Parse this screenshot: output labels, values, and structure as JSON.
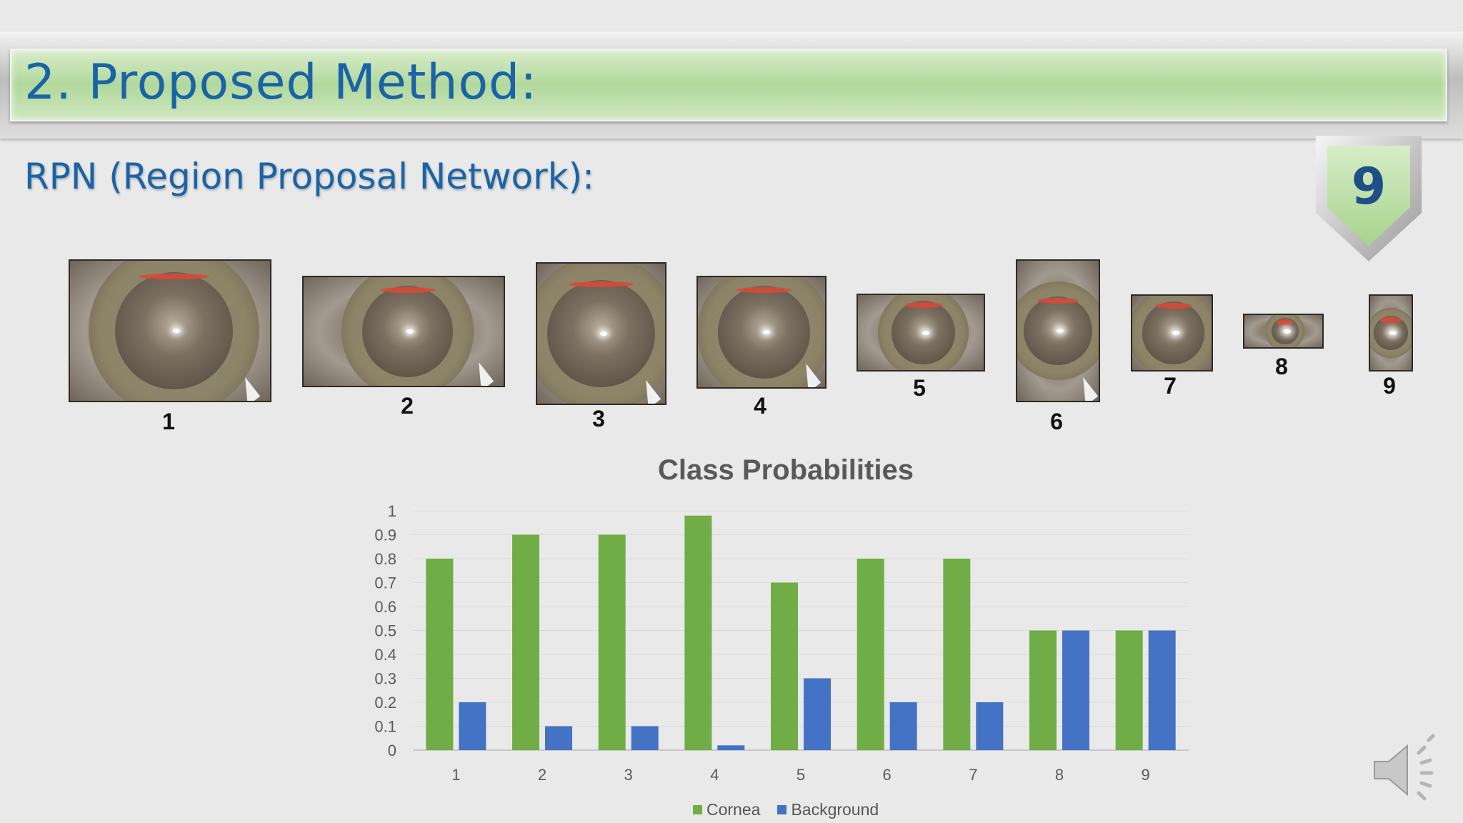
{
  "slide": {
    "title": "2. Proposed Method:",
    "subtitle": "RPN (Region Proposal Network):",
    "slide_number": "9"
  },
  "proposals": [
    {
      "label": "1"
    },
    {
      "label": "2"
    },
    {
      "label": "3"
    },
    {
      "label": "4"
    },
    {
      "label": "5"
    },
    {
      "label": "6"
    },
    {
      "label": "7"
    },
    {
      "label": "8"
    },
    {
      "label": "9"
    }
  ],
  "icons": {
    "speaker": "speaker-volume-icon"
  },
  "chart_data": {
    "type": "bar",
    "title": "Class Probabilities",
    "categories": [
      "1",
      "2",
      "3",
      "4",
      "5",
      "6",
      "7",
      "8",
      "9"
    ],
    "series": [
      {
        "name": "Cornea",
        "color": "#70ad47",
        "values": [
          0.8,
          0.9,
          0.9,
          0.98,
          0.7,
          0.8,
          0.8,
          0.5,
          0.5
        ]
      },
      {
        "name": "Background",
        "color": "#4472c4",
        "values": [
          0.2,
          0.1,
          0.1,
          0.02,
          0.3,
          0.2,
          0.2,
          0.5,
          0.5
        ]
      }
    ],
    "ylim": [
      0,
      1
    ],
    "yticks": [
      "0",
      "0.1",
      "0.2",
      "0.3",
      "0.4",
      "0.5",
      "0.6",
      "0.7",
      "0.8",
      "0.9",
      "1"
    ],
    "grid": true,
    "legend": "bottom"
  }
}
